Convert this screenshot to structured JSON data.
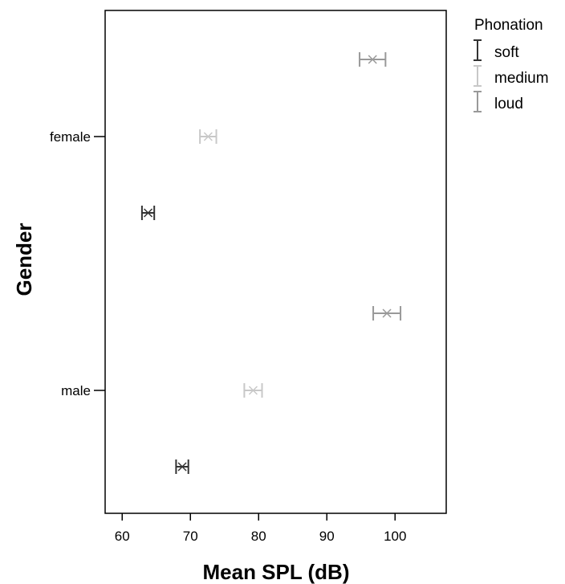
{
  "chart_data": {
    "type": "errorbar",
    "title": "",
    "xlabel": "Mean SPL (dB)",
    "ylabel": "Gender",
    "xlim": [
      57.5,
      107.5
    ],
    "xticks": [
      "60",
      "70",
      "80",
      "90",
      "100"
    ],
    "categories": [
      "female",
      "male"
    ],
    "grid": false,
    "legend": {
      "title": "Phonation",
      "placement": "right"
    },
    "series": [
      {
        "name": "soft",
        "color": "#333333",
        "marker": "x-icon",
        "points": [
          {
            "category": "female",
            "mean": 63.8,
            "low": 62.9,
            "high": 64.7
          },
          {
            "category": "male",
            "mean": 68.8,
            "low": 67.9,
            "high": 69.7
          }
        ]
      },
      {
        "name": "medium",
        "color": "#c8c8c8",
        "marker": "x-icon",
        "points": [
          {
            "category": "female",
            "mean": 72.6,
            "low": 71.4,
            "high": 73.8
          },
          {
            "category": "male",
            "mean": 79.2,
            "low": 77.9,
            "high": 80.5
          }
        ]
      },
      {
        "name": "loud",
        "color": "#999999",
        "marker": "x-icon",
        "points": [
          {
            "category": "female",
            "mean": 96.7,
            "low": 94.8,
            "high": 98.6
          },
          {
            "category": "male",
            "mean": 98.8,
            "low": 96.8,
            "high": 100.8
          }
        ]
      }
    ]
  }
}
